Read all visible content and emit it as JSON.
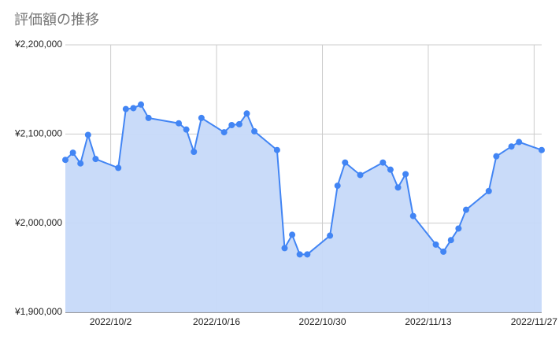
{
  "chart_data": {
    "type": "area-line",
    "title": "評価額の推移",
    "x": [
      "2022-09-26",
      "2022-09-27",
      "2022-09-28",
      "2022-09-29",
      "2022-09-30",
      "2022-10-03",
      "2022-10-04",
      "2022-10-05",
      "2022-10-06",
      "2022-10-07",
      "2022-10-11",
      "2022-10-12",
      "2022-10-13",
      "2022-10-14",
      "2022-10-17",
      "2022-10-18",
      "2022-10-19",
      "2022-10-20",
      "2022-10-21",
      "2022-10-24",
      "2022-10-25",
      "2022-10-26",
      "2022-10-27",
      "2022-10-28",
      "2022-10-31",
      "2022-11-01",
      "2022-11-02",
      "2022-11-04",
      "2022-11-07",
      "2022-11-08",
      "2022-11-09",
      "2022-11-10",
      "2022-11-11",
      "2022-11-14",
      "2022-11-15",
      "2022-11-16",
      "2022-11-17",
      "2022-11-18",
      "2022-11-21",
      "2022-11-22",
      "2022-11-24",
      "2022-11-25",
      "2022-11-28"
    ],
    "values": [
      2071000,
      2079000,
      2067000,
      2099000,
      2072000,
      2062000,
      2128000,
      2129000,
      2133000,
      2118000,
      2112000,
      2105000,
      2080000,
      2118000,
      2102000,
      2110000,
      2111000,
      2123000,
      2103000,
      2082000,
      1972000,
      1987000,
      1965000,
      1965000,
      1986000,
      2042000,
      2068000,
      2054000,
      2068000,
      2060000,
      2040000,
      2055000,
      2008000,
      1976000,
      1968000,
      1981000,
      1994000,
      2015000,
      2036000,
      2075000,
      2086000,
      2091000,
      2082000
    ],
    "color": "#4285f4",
    "fill_color": "#c6d9f9",
    "xlim": [
      "2022-09-26",
      "2022-11-28"
    ],
    "xticks": [
      {
        "value": "2022-10-02",
        "label": "2022/10/2"
      },
      {
        "value": "2022-10-16",
        "label": "2022/10/16"
      },
      {
        "value": "2022-10-30",
        "label": "2022/10/30"
      },
      {
        "value": "2022-11-13",
        "label": "2022/11/13"
      },
      {
        "value": "2022-11-27",
        "label": "2022/11/27"
      }
    ],
    "ylim": [
      1900000,
      2200000
    ],
    "yticks": [
      {
        "value": 1900000,
        "label": "¥1,900,000"
      },
      {
        "value": 2000000,
        "label": "¥2,000,000"
      },
      {
        "value": 2100000,
        "label": "¥2,100,000"
      },
      {
        "value": 2200000,
        "label": "¥2,200,000"
      }
    ],
    "grid": true
  }
}
